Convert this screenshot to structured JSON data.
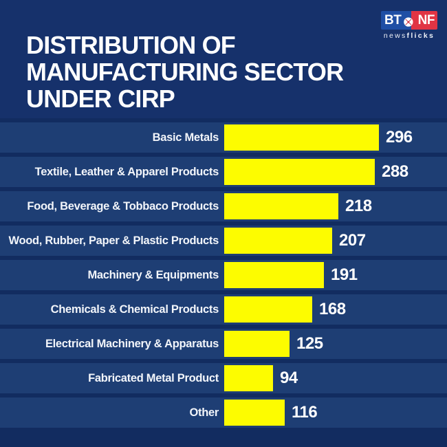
{
  "header": {
    "title_lines": [
      "DISTRIBUTION OF",
      "MANUFACTURING SECTOR",
      "UNDER CIRP"
    ]
  },
  "brand": {
    "left": "BT",
    "right": "NF",
    "tagline_news": "news",
    "tagline_flicks": "flicks",
    "globe_icon": "globe-icon"
  },
  "colors": {
    "background": "#16316b",
    "row_stripe": "#1e3e74",
    "row_gap": "#122c60",
    "bar": "#fdfc00",
    "logo_blue": "#1f4fa5",
    "logo_red": "#e13444",
    "text": "#ffffff"
  },
  "chart_data": {
    "type": "bar",
    "orientation": "horizontal",
    "title": "DISTRIBUTION OF MANUFACTURING SECTOR UNDER CIRP",
    "categories": [
      "Basic Metals",
      "Textile, Leather & Apparel Products",
      "Food, Beverage & Tobbaco Products",
      "Wood, Rubber, Paper & Plastic Products",
      "Machinery & Equipments",
      "Chemicals & Chemical Products",
      "Electrical Machinery & Apparatus",
      "Fabricated Metal Product",
      "Other"
    ],
    "values": [
      296,
      288,
      218,
      207,
      191,
      168,
      125,
      94,
      116
    ],
    "bar_color": "#fdfc00",
    "value_labels_shown": true,
    "legend": "none",
    "grid": "off",
    "xlim": [
      0,
      310
    ]
  }
}
